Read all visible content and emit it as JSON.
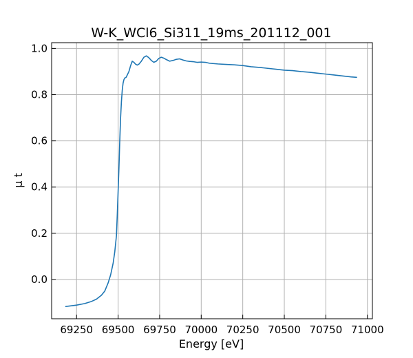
{
  "chart_data": {
    "type": "line",
    "title": "W-K_WCl6_Si311_19ms_201112_001",
    "xlabel": "Energy [eV]",
    "ylabel": "μ t",
    "xlim": [
      69100,
      71030
    ],
    "ylim": [
      -0.17,
      1.025
    ],
    "xticks": [
      69250,
      69500,
      69750,
      70000,
      70250,
      70500,
      70750,
      71000
    ],
    "yticks": [
      0.0,
      0.2,
      0.4,
      0.6,
      0.8,
      1.0
    ],
    "xtick_labels": [
      "69250",
      "69500",
      "69750",
      "70000",
      "70250",
      "70500",
      "70750",
      "71000"
    ],
    "ytick_labels": [
      "0.0",
      "0.2",
      "0.4",
      "0.6",
      "0.8",
      "1.0"
    ],
    "grid": true,
    "tick_direction": "in",
    "series": [
      {
        "color": "#1f77b4",
        "x": [
          69185,
          69250,
          69300,
          69340,
          69370,
          69400,
          69420,
          69440,
          69455,
          69470,
          69480,
          69490,
          69495,
          69500,
          69505,
          69510,
          69515,
          69520,
          69525,
          69530,
          69535,
          69540,
          69548,
          69555,
          69565,
          69575,
          69585,
          69595,
          69605,
          69615,
          69625,
          69640,
          69655,
          69670,
          69685,
          69700,
          69715,
          69730,
          69745,
          69760,
          69775,
          69790,
          69810,
          69830,
          69850,
          69870,
          69890,
          69910,
          69930,
          69950,
          69975,
          70000,
          70025,
          70050,
          70100,
          70150,
          70200,
          70250,
          70300,
          70350,
          70400,
          70450,
          70500,
          70550,
          70600,
          70650,
          70700,
          70750,
          70800,
          70850,
          70900,
          70935
        ],
        "y": [
          -0.117,
          -0.111,
          -0.104,
          -0.095,
          -0.085,
          -0.068,
          -0.05,
          -0.015,
          0.02,
          0.07,
          0.12,
          0.19,
          0.28,
          0.38,
          0.48,
          0.6,
          0.7,
          0.77,
          0.82,
          0.85,
          0.865,
          0.872,
          0.875,
          0.885,
          0.9,
          0.925,
          0.945,
          0.94,
          0.932,
          0.928,
          0.932,
          0.945,
          0.962,
          0.968,
          0.96,
          0.948,
          0.94,
          0.945,
          0.957,
          0.962,
          0.958,
          0.952,
          0.945,
          0.948,
          0.953,
          0.955,
          0.95,
          0.946,
          0.944,
          0.943,
          0.94,
          0.941,
          0.94,
          0.936,
          0.933,
          0.931,
          0.929,
          0.926,
          0.921,
          0.918,
          0.914,
          0.91,
          0.906,
          0.904,
          0.9,
          0.897,
          0.893,
          0.889,
          0.885,
          0.881,
          0.877,
          0.875
        ]
      }
    ]
  }
}
